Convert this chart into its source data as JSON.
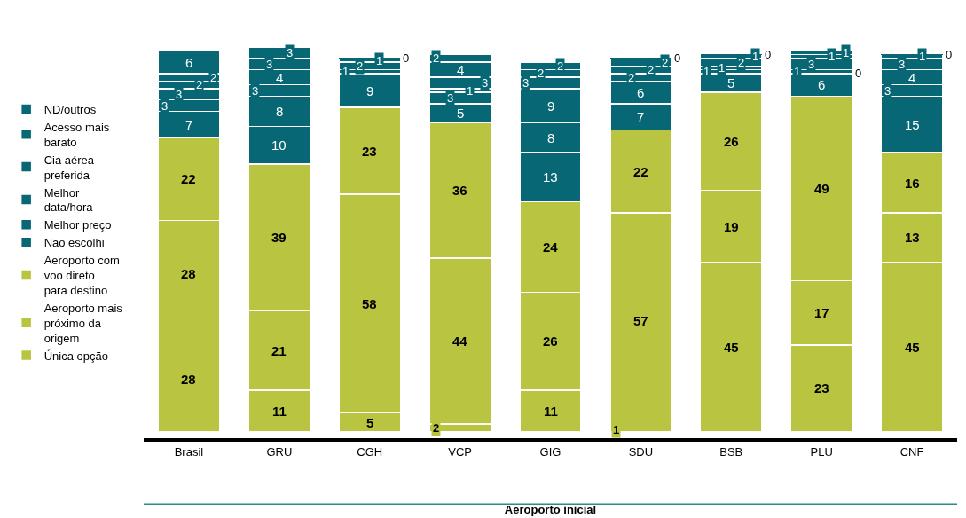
{
  "chart_data": {
    "type": "bar",
    "stacked": true,
    "xlabel": "Aeroporto inicial",
    "categories": [
      "Brasil",
      "GRU",
      "CGH",
      "VCP",
      "GIG",
      "SDU",
      "BSB",
      "PLU",
      "CNF"
    ],
    "series": [
      {
        "name": "Única opção",
        "color": "#b9c441",
        "values": [
          28,
          11,
          5,
          2,
          11,
          1,
          45,
          23,
          45
        ]
      },
      {
        "name": "Aeroporto mais próximo da origem",
        "color": "#b9c441",
        "values": [
          28,
          21,
          58,
          44,
          26,
          57,
          19,
          17,
          13
        ]
      },
      {
        "name": "Aeroporto com voo direto para destino",
        "color": "#b9c441",
        "values": [
          22,
          39,
          23,
          36,
          24,
          22,
          26,
          49,
          16
        ]
      },
      {
        "name": "Não escolhi",
        "color": "#086775",
        "values": [
          7,
          10,
          9,
          5,
          13,
          7,
          5,
          6,
          15
        ]
      },
      {
        "name": "Melhor preço",
        "color": "#086775",
        "values": [
          3,
          8,
          1,
          3,
          8,
          6,
          1,
          0,
          3
        ]
      },
      {
        "name": "Melhor data/hora",
        "color": "#086775",
        "values": [
          3,
          3,
          2,
          1,
          9,
          2,
          1,
          1,
          4
        ]
      },
      {
        "name": "Cia aérea preferida",
        "color": "#086775",
        "values": [
          2,
          4,
          1,
          3,
          3,
          2,
          2,
          3,
          3
        ]
      },
      {
        "name": "Acesso mais barato",
        "color": "#086775",
        "values": [
          2,
          3,
          null,
          4,
          2,
          2,
          1,
          1,
          1
        ]
      },
      {
        "name": "ND/outros",
        "color": "#086775",
        "values": [
          6,
          3,
          0,
          2,
          2,
          0,
          0,
          1,
          0
        ]
      }
    ],
    "data_labels": true,
    "legend": "left",
    "grid": false,
    "tick_labels": "x"
  }
}
